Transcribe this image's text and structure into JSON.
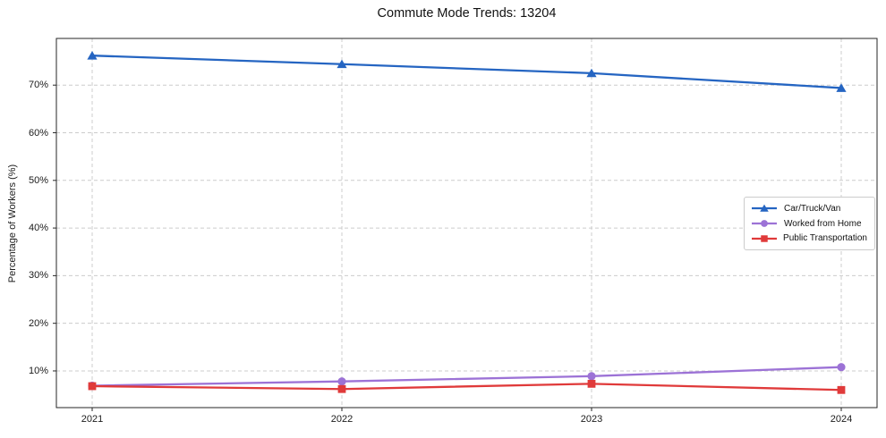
{
  "figure": {
    "title": "Commute Mode Trends: 13204"
  },
  "chart_data": {
    "type": "line",
    "title": "Commute Mode Trends: 13204",
    "xlabel": "",
    "ylabel": "Percentage of Workers (%)",
    "categories": [
      "2021",
      "2022",
      "2023",
      "2024"
    ],
    "series": [
      {
        "name": "Car/Truck/Van",
        "marker": "triangle",
        "color": "#2565c2",
        "values": [
          76.2,
          74.4,
          72.5,
          69.4
        ]
      },
      {
        "name": "Worked from Home",
        "marker": "circle",
        "color": "#9c72d6",
        "values": [
          6.9,
          7.8,
          8.9,
          10.8
        ]
      },
      {
        "name": "Public Transportation",
        "marker": "square",
        "color": "#e03a3a",
        "values": [
          6.8,
          6.2,
          7.3,
          6.0
        ]
      }
    ],
    "ylim": [
      2.3,
      79.8
    ],
    "yticks": [
      10,
      20,
      30,
      40,
      50,
      60,
      70
    ],
    "ytick_suffix": "%",
    "grid": true,
    "grid_style": "dashed",
    "legend_position": "right-middle"
  },
  "colors": {
    "background": "#ffffff",
    "grid": "#cccccc",
    "spine": "#262626",
    "text": "#1a1a1a"
  }
}
